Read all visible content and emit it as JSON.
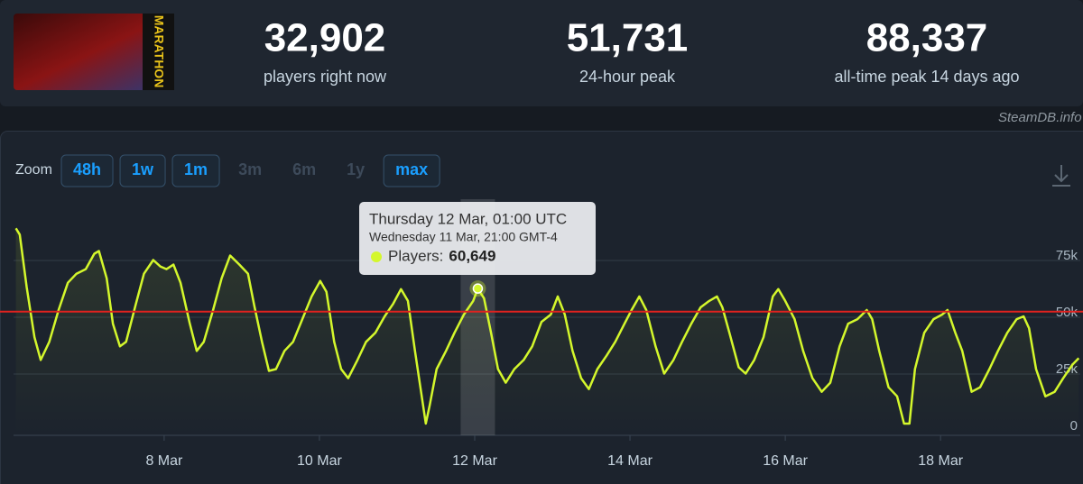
{
  "header": {
    "game_logo_text": "MARATHON",
    "stats": [
      {
        "value": "32,902",
        "label": "players right now"
      },
      {
        "value": "51,731",
        "label": "24-hour peak"
      },
      {
        "value": "88,337",
        "label": "all-time peak 14 days ago"
      }
    ]
  },
  "watermark": "SteamDB.info",
  "zoom": {
    "label": "Zoom",
    "options": [
      {
        "label": "48h",
        "enabled": true
      },
      {
        "label": "1w",
        "enabled": true
      },
      {
        "label": "1m",
        "enabled": true
      },
      {
        "label": "3m",
        "enabled": false
      },
      {
        "label": "6m",
        "enabled": false
      },
      {
        "label": "1y",
        "enabled": false
      },
      {
        "label": "max",
        "enabled": true
      }
    ]
  },
  "chart_data": {
    "type": "line",
    "color": "#d4f72c",
    "x": [
      6.09,
      6.14,
      6.23,
      6.33,
      6.41,
      6.52,
      6.64,
      6.76,
      6.87,
      6.99,
      7.1,
      7.16,
      7.26,
      7.34,
      7.43,
      7.51,
      7.63,
      7.74,
      7.86,
      7.95,
      8.03,
      8.12,
      8.21,
      8.33,
      8.42,
      8.51,
      8.63,
      8.74,
      8.85,
      8.97,
      9.08,
      9.16,
      9.26,
      9.35,
      9.44,
      9.55,
      9.66,
      9.78,
      9.9,
      10.01,
      10.09,
      10.19,
      10.28,
      10.37,
      10.49,
      10.6,
      10.72,
      10.84,
      10.95,
      11.05,
      11.14,
      11.23,
      11.3,
      11.37,
      11.42,
      11.51,
      11.63,
      11.74,
      11.86,
      11.98,
      12.04,
      12.12,
      12.21,
      12.3,
      12.4,
      12.51,
      12.63,
      12.74,
      12.86,
      12.98,
      13.07,
      13.16,
      13.26,
      13.37,
      13.47,
      13.58,
      13.7,
      13.81,
      13.93,
      14.02,
      14.12,
      14.21,
      14.33,
      14.44,
      14.56,
      14.67,
      14.79,
      14.91,
      15.02,
      15.12,
      15.19,
      15.28,
      15.4,
      15.49,
      15.6,
      15.72,
      15.84,
      15.91,
      16.0,
      16.12,
      16.23,
      16.35,
      16.47,
      16.58,
      16.7,
      16.81,
      16.93,
      17.05,
      17.12,
      17.21,
      17.33,
      17.44,
      17.53,
      17.6,
      17.67,
      17.79,
      17.91,
      18.02,
      18.09,
      18.19,
      18.28,
      18.4,
      18.51,
      18.63,
      18.74,
      18.86,
      18.98,
      19.07,
      19.14,
      19.23,
      19.35,
      19.47,
      19.58,
      19.7,
      19.78
    ],
    "values": [
      87200,
      84400,
      61200,
      39200,
      29200,
      37200,
      51200,
      63200,
      67200,
      69200,
      76000,
      77200,
      65200,
      45200,
      35200,
      37200,
      53200,
      67200,
      73200,
      70400,
      69200,
      71200,
      63200,
      45200,
      33200,
      37200,
      51200,
      65200,
      75200,
      71200,
      67200,
      53200,
      37200,
      24400,
      25200,
      33200,
      37200,
      47200,
      57200,
      64000,
      59200,
      37200,
      25200,
      21200,
      29200,
      37200,
      41200,
      48400,
      54000,
      60400,
      55200,
      33200,
      17200,
      1200,
      9200,
      25200,
      33200,
      41200,
      49200,
      55200,
      60649,
      56400,
      41200,
      25200,
      19200,
      25200,
      29200,
      35200,
      46000,
      49200,
      57200,
      49200,
      33200,
      21200,
      16400,
      25200,
      31200,
      37200,
      45200,
      51200,
      57200,
      51200,
      35200,
      23200,
      29200,
      37200,
      45200,
      52400,
      55200,
      57200,
      52400,
      41200,
      26000,
      23200,
      29200,
      39200,
      57200,
      60400,
      55200,
      47200,
      33200,
      21200,
      15200,
      19200,
      35200,
      45200,
      47200,
      51200,
      47200,
      33200,
      17200,
      13200,
      1200,
      1200,
      25200,
      41200,
      47200,
      49200,
      51200,
      41200,
      33200,
      15200,
      17200,
      25200,
      33200,
      41200,
      47200,
      48400,
      43200,
      25200,
      13200,
      15200,
      21200,
      27200,
      30000
    ],
    "xlim": [
      6.06,
      19.8
    ],
    "xticks": [
      {
        "value": 8,
        "label": "8 Mar"
      },
      {
        "value": 10,
        "label": "10 Mar"
      },
      {
        "value": 12,
        "label": "12 Mar"
      },
      {
        "value": 14,
        "label": "14 Mar"
      },
      {
        "value": 16,
        "label": "16 Mar"
      },
      {
        "value": 18,
        "label": "18 Mar"
      }
    ],
    "ylim": [
      0,
      100000
    ],
    "yticks": [
      0,
      {
        "value": 25000,
        "label": "25k"
      },
      {
        "value": 50000,
        "label": "50k"
      },
      {
        "value": 75000,
        "label": "75k"
      }
    ],
    "grid": true,
    "reference_line": {
      "value": 50500,
      "color": "#e0221f"
    },
    "tooltip": {
      "line1": "Thursday 12 Mar, 01:00 UTC",
      "line2": "Wednesday 11 Mar, 21:00 GMT-4",
      "label": "Players:",
      "value": "60,649"
    }
  }
}
